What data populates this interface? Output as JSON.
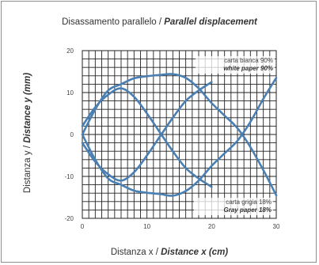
{
  "title": {
    "it": "Disassamento parallelo / ",
    "en": "Parallel displacement"
  },
  "xlabel": {
    "it": "Distanza x / ",
    "en": "Distance x (cm)"
  },
  "ylabel": {
    "it": "Distanza y / ",
    "en": "Distance y (mm)"
  },
  "chart_data": {
    "type": "line",
    "xlim": [
      0,
      30
    ],
    "ylim": [
      -20,
      20
    ],
    "grid": true,
    "x_ticks": [
      0,
      10,
      20,
      30
    ],
    "y_ticks": [
      20,
      10,
      0,
      -10,
      -20
    ],
    "line_color": "#4a7fb3",
    "annotations": [
      {
        "it": "carta bianca 90%",
        "en": "white paper 90%",
        "near": "top-right"
      },
      {
        "it": "carta grigia 18%",
        "en": "Gray paper 18%",
        "near": "bottom-right"
      }
    ],
    "series": [
      {
        "x": [
          0,
          2,
          4,
          6,
          8,
          10,
          12,
          14,
          16,
          18,
          20,
          22,
          24,
          26,
          28,
          30
        ],
        "y": [
          0,
          6,
          10.5,
          12,
          13.4,
          13.9,
          14.2,
          14.4,
          13.5,
          11,
          7.5,
          4.5,
          1.5,
          -3,
          -8.5,
          -14.5
        ]
      },
      {
        "x": [
          0,
          2,
          4,
          6,
          8,
          10,
          12,
          14,
          16,
          18,
          20,
          22,
          24,
          26,
          28,
          30
        ],
        "y": [
          0,
          -6,
          -10.5,
          -12,
          -13.4,
          -13.9,
          -14.2,
          -14.6,
          -13.5,
          -11,
          -7.5,
          -4.5,
          -1.5,
          3,
          8.5,
          13.5
        ]
      },
      {
        "x": [
          0,
          2,
          4,
          6,
          8,
          10,
          12,
          14,
          16,
          18,
          20
        ],
        "y": [
          2,
          6.5,
          9.5,
          11,
          9,
          5,
          0.5,
          -4,
          -8,
          -10.5,
          -12.5
        ]
      },
      {
        "x": [
          0,
          2,
          4,
          6,
          8,
          10,
          12,
          14,
          16,
          18,
          20
        ],
        "y": [
          -2,
          -6.5,
          -9.5,
          -11,
          -9,
          -5,
          -0.5,
          4,
          8,
          10.5,
          12.5
        ]
      }
    ]
  }
}
